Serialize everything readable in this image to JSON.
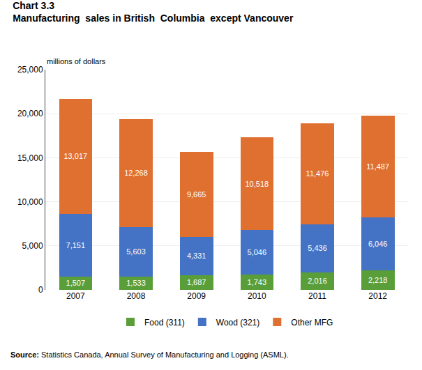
{
  "chart_data": {
    "type": "bar",
    "stacked": true,
    "title": "Chart 3.3",
    "subtitle": "Manufacturing  sales in British  Columbia  except Vancouver",
    "ylabel": "millions of dollars",
    "categories": [
      "2007",
      "2008",
      "2009",
      "2010",
      "2011",
      "2012"
    ],
    "series": [
      {
        "name": "Food (311)",
        "color": "#5a9e3a",
        "values": [
          1507,
          1533,
          1687,
          1743,
          2016,
          2218
        ],
        "value_labels": [
          "1,507",
          "1,533",
          "1,687",
          "1,743",
          "2,016",
          "2,218"
        ]
      },
      {
        "name": "Wood (321)",
        "color": "#4472c4",
        "values": [
          7151,
          5603,
          4331,
          5046,
          5436,
          6046
        ],
        "value_labels": [
          "7,151",
          "5,603",
          "4,331",
          "5,046",
          "5,436",
          "6,046"
        ]
      },
      {
        "name": "Other MFG",
        "color": "#e07030",
        "values": [
          13017,
          12268,
          9665,
          10518,
          11476,
          11487
        ],
        "value_labels": [
          "13,017",
          "12,268",
          "9,665",
          "10,518",
          "11,476",
          "11,487"
        ]
      }
    ],
    "ylim": [
      0,
      25000
    ],
    "yticks": [
      0,
      {
        "value": 5000,
        "label": "5,000"
      },
      {
        "value": 10000,
        "label": "10,000"
      },
      {
        "value": 15000,
        "label": "15,000"
      },
      {
        "value": 20000,
        "label": "20,000"
      },
      {
        "value": 25000,
        "label": "25,000"
      }
    ],
    "grid": true,
    "data_labels": true,
    "legend": "bottom",
    "annotations": [
      "Source: Statistics Canada, Annual Survey of Manufacturing and Logging (ASML)."
    ]
  }
}
